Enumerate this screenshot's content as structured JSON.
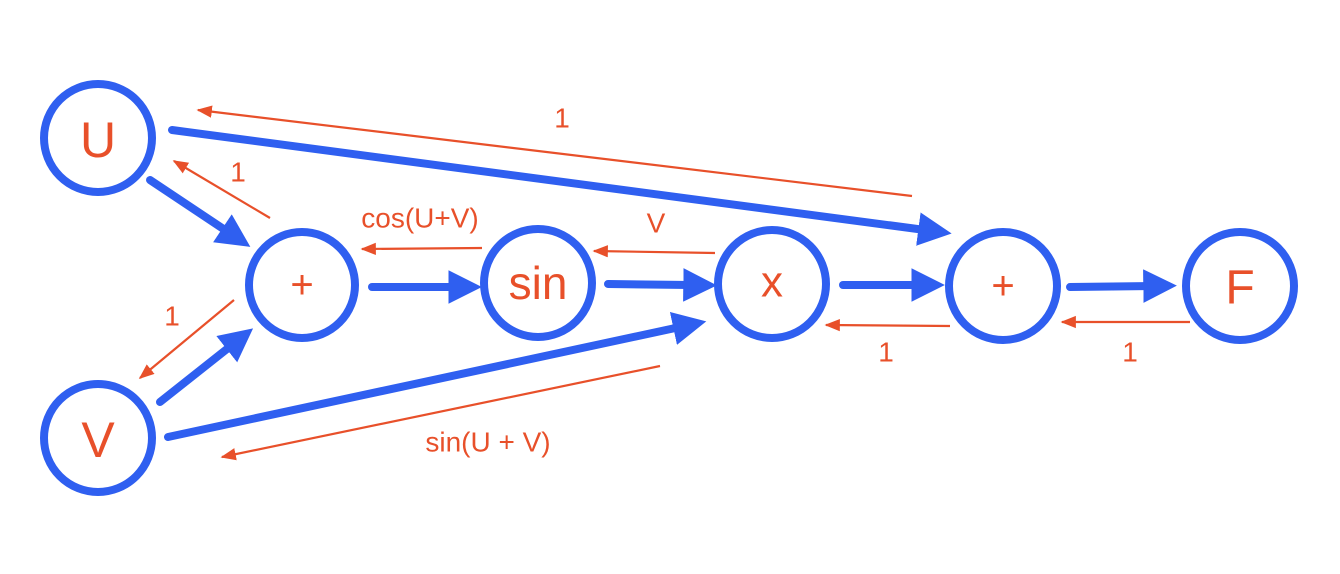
{
  "colors": {
    "node_stroke": "#2f5ff0",
    "forward_edge": "#2f5ff0",
    "gradient_edge": "#e8502a",
    "text": "#e8502a"
  },
  "nodes": {
    "u": "U",
    "v": "V",
    "plus1": "+",
    "sin": "sin",
    "mul": "x",
    "plus2": "+",
    "f": "F"
  },
  "gradients": {
    "plus2_to_u": "1",
    "plus1_to_u": "1",
    "plus1_to_v": "1",
    "sin_to_plus1": "cos(U+V)",
    "mul_to_sin": "V",
    "mul_to_v": "sin(U + V)",
    "plus2_to_mul": "1",
    "f_to_plus2": "1"
  }
}
